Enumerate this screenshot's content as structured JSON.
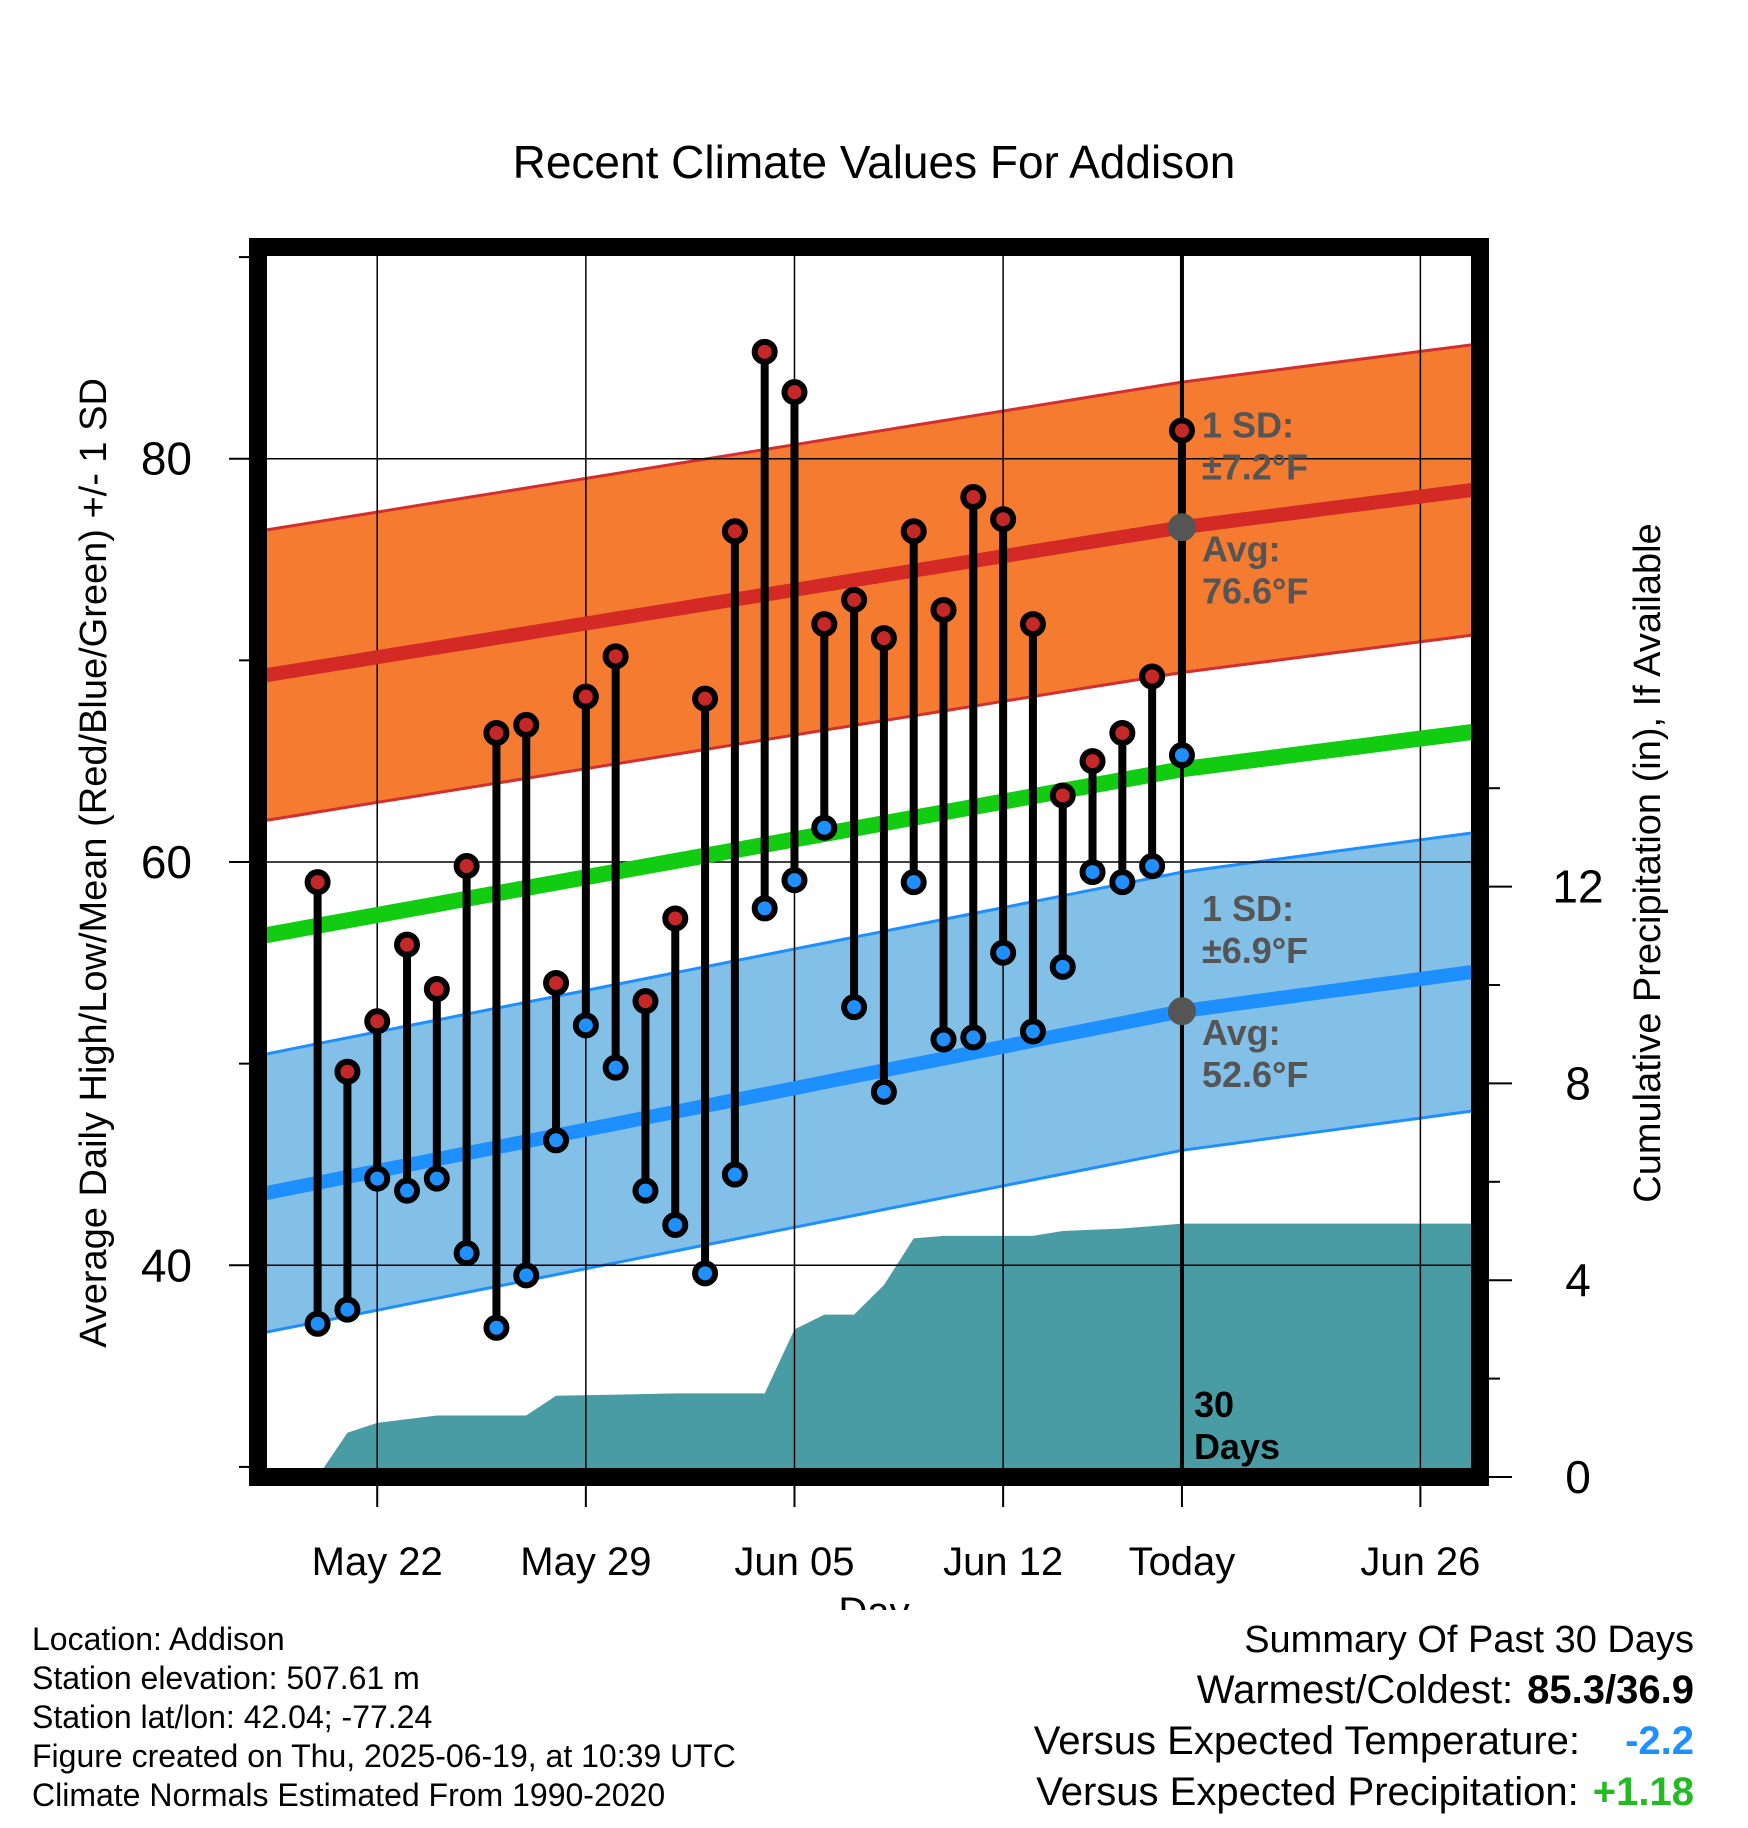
{
  "chart_data": {
    "type": "line",
    "title": "Recent Climate Values For Addison",
    "xlabel": "Day",
    "ylabel": "Average Daily High/Low/Mean (Red/Blue/Green) +/- 1 SD",
    "y2label": "Cumulative Precipitation (in), If Available",
    "x_tick_labels": [
      "May 22",
      "May 29",
      "Jun 05",
      "Jun 12",
      "Today",
      "Jun 26"
    ],
    "y_ticks": [
      "40",
      "60",
      "80"
    ],
    "y2_ticks": [
      "0",
      "4",
      "8",
      "12"
    ],
    "ylim": [
      29.5,
      90.5
    ],
    "y2lim": [
      0,
      25
    ],
    "xlim": [
      "2025-05-18",
      "2025-06-28"
    ],
    "dates": [
      "2025-05-20",
      "2025-05-21",
      "2025-05-22",
      "2025-05-23",
      "2025-05-24",
      "2025-05-25",
      "2025-05-26",
      "2025-05-27",
      "2025-05-28",
      "2025-05-29",
      "2025-05-30",
      "2025-05-31",
      "2025-06-01",
      "2025-06-02",
      "2025-06-03",
      "2025-06-04",
      "2025-06-05",
      "2025-06-06",
      "2025-06-07",
      "2025-06-08",
      "2025-06-09",
      "2025-06-10",
      "2025-06-11",
      "2025-06-12",
      "2025-06-13",
      "2025-06-14",
      "2025-06-15",
      "2025-06-16",
      "2025-06-17",
      "2025-06-18"
    ],
    "series": [
      {
        "name": "High",
        "color": "#c62828",
        "values": [
          59.0,
          49.6,
          52.1,
          55.9,
          53.7,
          59.8,
          66.4,
          66.8,
          54.0,
          68.2,
          70.2,
          53.1,
          57.2,
          68.1,
          76.4,
          85.3,
          83.3,
          71.8,
          73.0,
          71.1,
          76.4,
          72.5,
          78.1,
          77.0,
          71.8,
          63.3,
          65.0,
          66.4,
          69.2,
          81.4
        ]
      },
      {
        "name": "Low",
        "color": "#1e90ff",
        "values": [
          37.1,
          37.8,
          44.3,
          43.7,
          44.3,
          40.6,
          36.9,
          39.5,
          46.2,
          51.9,
          49.8,
          43.7,
          42.0,
          39.6,
          44.5,
          57.7,
          59.1,
          61.7,
          52.8,
          48.6,
          59.0,
          51.2,
          51.3,
          55.5,
          51.6,
          54.8,
          59.5,
          59.0,
          59.8,
          65.3
        ]
      },
      {
        "name": "Normal High",
        "color": "#d42a25",
        "points": [
          [
            "2025-05-18",
            69.2
          ],
          [
            "2025-06-18",
            76.6
          ],
          [
            "2025-06-28",
            78.5
          ]
        ]
      },
      {
        "name": "Normal High SD",
        "color": "#f47b2f",
        "sd": 7.2
      },
      {
        "name": "Normal Low",
        "color": "#1e8fff",
        "points": [
          [
            "2025-05-18",
            43.5
          ],
          [
            "2025-06-18",
            52.6
          ],
          [
            "2025-06-28",
            54.6
          ]
        ]
      },
      {
        "name": "Normal Low SD",
        "color": "#82c0e8",
        "sd": 6.9
      },
      {
        "name": "Normal Mean",
        "color": "#11cc11",
        "points": [
          [
            "2025-05-18",
            56.3
          ],
          [
            "2025-06-18",
            64.6
          ],
          [
            "2025-06-28",
            66.5
          ]
        ]
      }
    ],
    "precip": {
      "color": "#4a9ca4",
      "points": [
        [
          "2025-05-20",
          0
        ],
        [
          "2025-05-21",
          0.9
        ],
        [
          "2025-05-22",
          1.1
        ],
        [
          "2025-05-24",
          1.25
        ],
        [
          "2025-05-27",
          1.25
        ],
        [
          "2025-05-28",
          1.65
        ],
        [
          "2025-06-01",
          1.7
        ],
        [
          "2025-06-03",
          1.7
        ],
        [
          "2025-06-04",
          1.7
        ],
        [
          "2025-06-05",
          3.0
        ],
        [
          "2025-06-06",
          3.3
        ],
        [
          "2025-06-07",
          3.3
        ],
        [
          "2025-06-08",
          3.9
        ],
        [
          "2025-06-09",
          4.85
        ],
        [
          "2025-06-10",
          4.9
        ],
        [
          "2025-06-13",
          4.9
        ],
        [
          "2025-06-14",
          5.0
        ],
        [
          "2025-06-16",
          5.05
        ],
        [
          "2025-06-17",
          5.1
        ],
        [
          "2025-06-18",
          5.15
        ],
        [
          "2025-06-28",
          5.15
        ]
      ]
    },
    "annotations": {
      "high_sd": [
        "1 SD:",
        "±7.2°F"
      ],
      "high_avg": [
        "Avg:",
        "76.6°F"
      ],
      "low_sd": [
        "1 SD:",
        "±6.9°F"
      ],
      "low_avg": [
        "Avg:",
        "52.6°F"
      ],
      "window": [
        "30",
        "Days"
      ]
    },
    "today": "2025-06-18",
    "grid": true
  },
  "info": [
    "Location: Addison",
    "Station elevation: 507.61 m",
    "Station lat/lon: 42.04; -77.24",
    "Figure created on Thu, 2025-06-19, at 10:39 UTC",
    "Climate Normals Estimated From 1990-2020"
  ],
  "summary": {
    "heading": "Summary Of Past 30 Days",
    "warmest_coldest_label": "Warmest/Coldest:",
    "warmest_coldest_value": "85.3/36.9",
    "temp_label": "Versus Expected Temperature:",
    "temp_value": "-2.2",
    "temp_color": "#1e90ff",
    "precip_label": "Versus Expected Precipitation:",
    "precip_value": "+1.18",
    "precip_color": "#22bb22"
  }
}
